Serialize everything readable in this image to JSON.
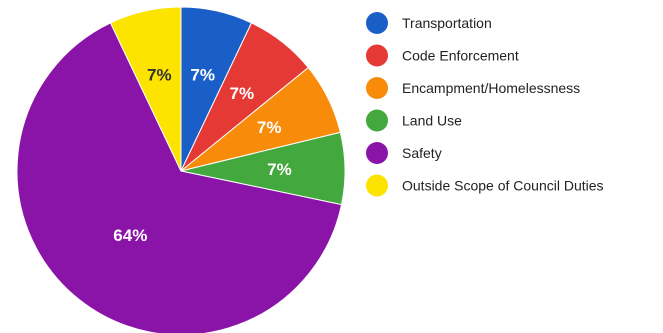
{
  "chart_data": {
    "type": "pie",
    "title": "",
    "categories": [
      "Transportation",
      "Code Enforcement",
      "Encampment/Homelessness",
      "Land Use",
      "Safety",
      "Outside Scope of Council Duties"
    ],
    "values": [
      7,
      7,
      7,
      7,
      64,
      7
    ],
    "labels": [
      "7%",
      "7%",
      "7%",
      "7%",
      "64%",
      "7%"
    ],
    "colors": [
      "#1a5fc7",
      "#e53935",
      "#f98b0b",
      "#43a83d",
      "#8b14a8",
      "#fce400"
    ],
    "label_colors": [
      "#ffffff",
      "#ffffff",
      "#ffffff",
      "#ffffff",
      "#ffffff",
      "#333333"
    ],
    "start_angle_deg": 0,
    "direction": "clockwise",
    "legend_position": "right"
  }
}
